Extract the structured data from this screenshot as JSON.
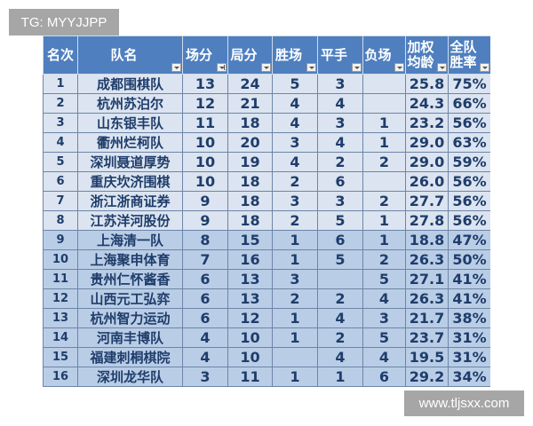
{
  "watermarks": {
    "top_left": "TG: MYYJJPP",
    "bottom_right": "www.tljsxx.com"
  },
  "headers": [
    {
      "l1": "名次",
      "l2": ""
    },
    {
      "l1": "队名",
      "l2": ""
    },
    {
      "l1": "场分",
      "l2": ""
    },
    {
      "l1": "局分",
      "l2": ""
    },
    {
      "l1": "胜场",
      "l2": ""
    },
    {
      "l1": "平手",
      "l2": ""
    },
    {
      "l1": "负场",
      "l2": ""
    },
    {
      "l1": "加权",
      "l2": "均龄"
    },
    {
      "l1": "全队",
      "l2": "胜率"
    }
  ],
  "rows": [
    [
      "1",
      "成都围棋队",
      "13",
      "24",
      "5",
      "3",
      "",
      "25.8",
      "75%"
    ],
    [
      "2",
      "杭州苏泊尔",
      "12",
      "21",
      "4",
      "4",
      "",
      "24.3",
      "66%"
    ],
    [
      "3",
      "山东银丰队",
      "11",
      "18",
      "4",
      "3",
      "1",
      "23.2",
      "56%"
    ],
    [
      "4",
      "衢州烂柯队",
      "10",
      "20",
      "3",
      "4",
      "1",
      "29.0",
      "63%"
    ],
    [
      "5",
      "深圳聂道厚势",
      "10",
      "19",
      "4",
      "2",
      "2",
      "29.0",
      "59%"
    ],
    [
      "6",
      "重庆坎济围棋",
      "10",
      "18",
      "2",
      "6",
      "",
      "26.0",
      "56%"
    ],
    [
      "7",
      "浙江浙商证券",
      "9",
      "18",
      "3",
      "3",
      "2",
      "27.7",
      "56%"
    ],
    [
      "8",
      "江苏洋河股份",
      "9",
      "18",
      "2",
      "5",
      "1",
      "27.8",
      "56%"
    ],
    [
      "9",
      "上海清一队",
      "8",
      "15",
      "1",
      "6",
      "1",
      "18.8",
      "47%"
    ],
    [
      "10",
      "上海聚申体育",
      "7",
      "16",
      "1",
      "5",
      "2",
      "26.3",
      "50%"
    ],
    [
      "11",
      "贵州仁怀酱香",
      "6",
      "13",
      "3",
      "",
      "5",
      "27.1",
      "41%"
    ],
    [
      "12",
      "山西元工弘弈",
      "6",
      "13",
      "2",
      "2",
      "4",
      "26.3",
      "41%"
    ],
    [
      "13",
      "杭州智力运动",
      "6",
      "12",
      "1",
      "4",
      "3",
      "21.7",
      "38%"
    ],
    [
      "14",
      "河南丰博队",
      "4",
      "10",
      "1",
      "2",
      "5",
      "23.7",
      "31%"
    ],
    [
      "15",
      "福建刺桐棋院",
      "4",
      "10",
      "",
      "4",
      "4",
      "19.5",
      "31%"
    ],
    [
      "16",
      "深圳龙华队",
      "3",
      "11",
      "1",
      "1",
      "6",
      "29.2",
      "34%"
    ]
  ],
  "colors": {
    "header": "#4f7fbf",
    "row_light": "#dbe4f0",
    "row_blue": "#b9cde6",
    "text": "#1f3d6b"
  }
}
